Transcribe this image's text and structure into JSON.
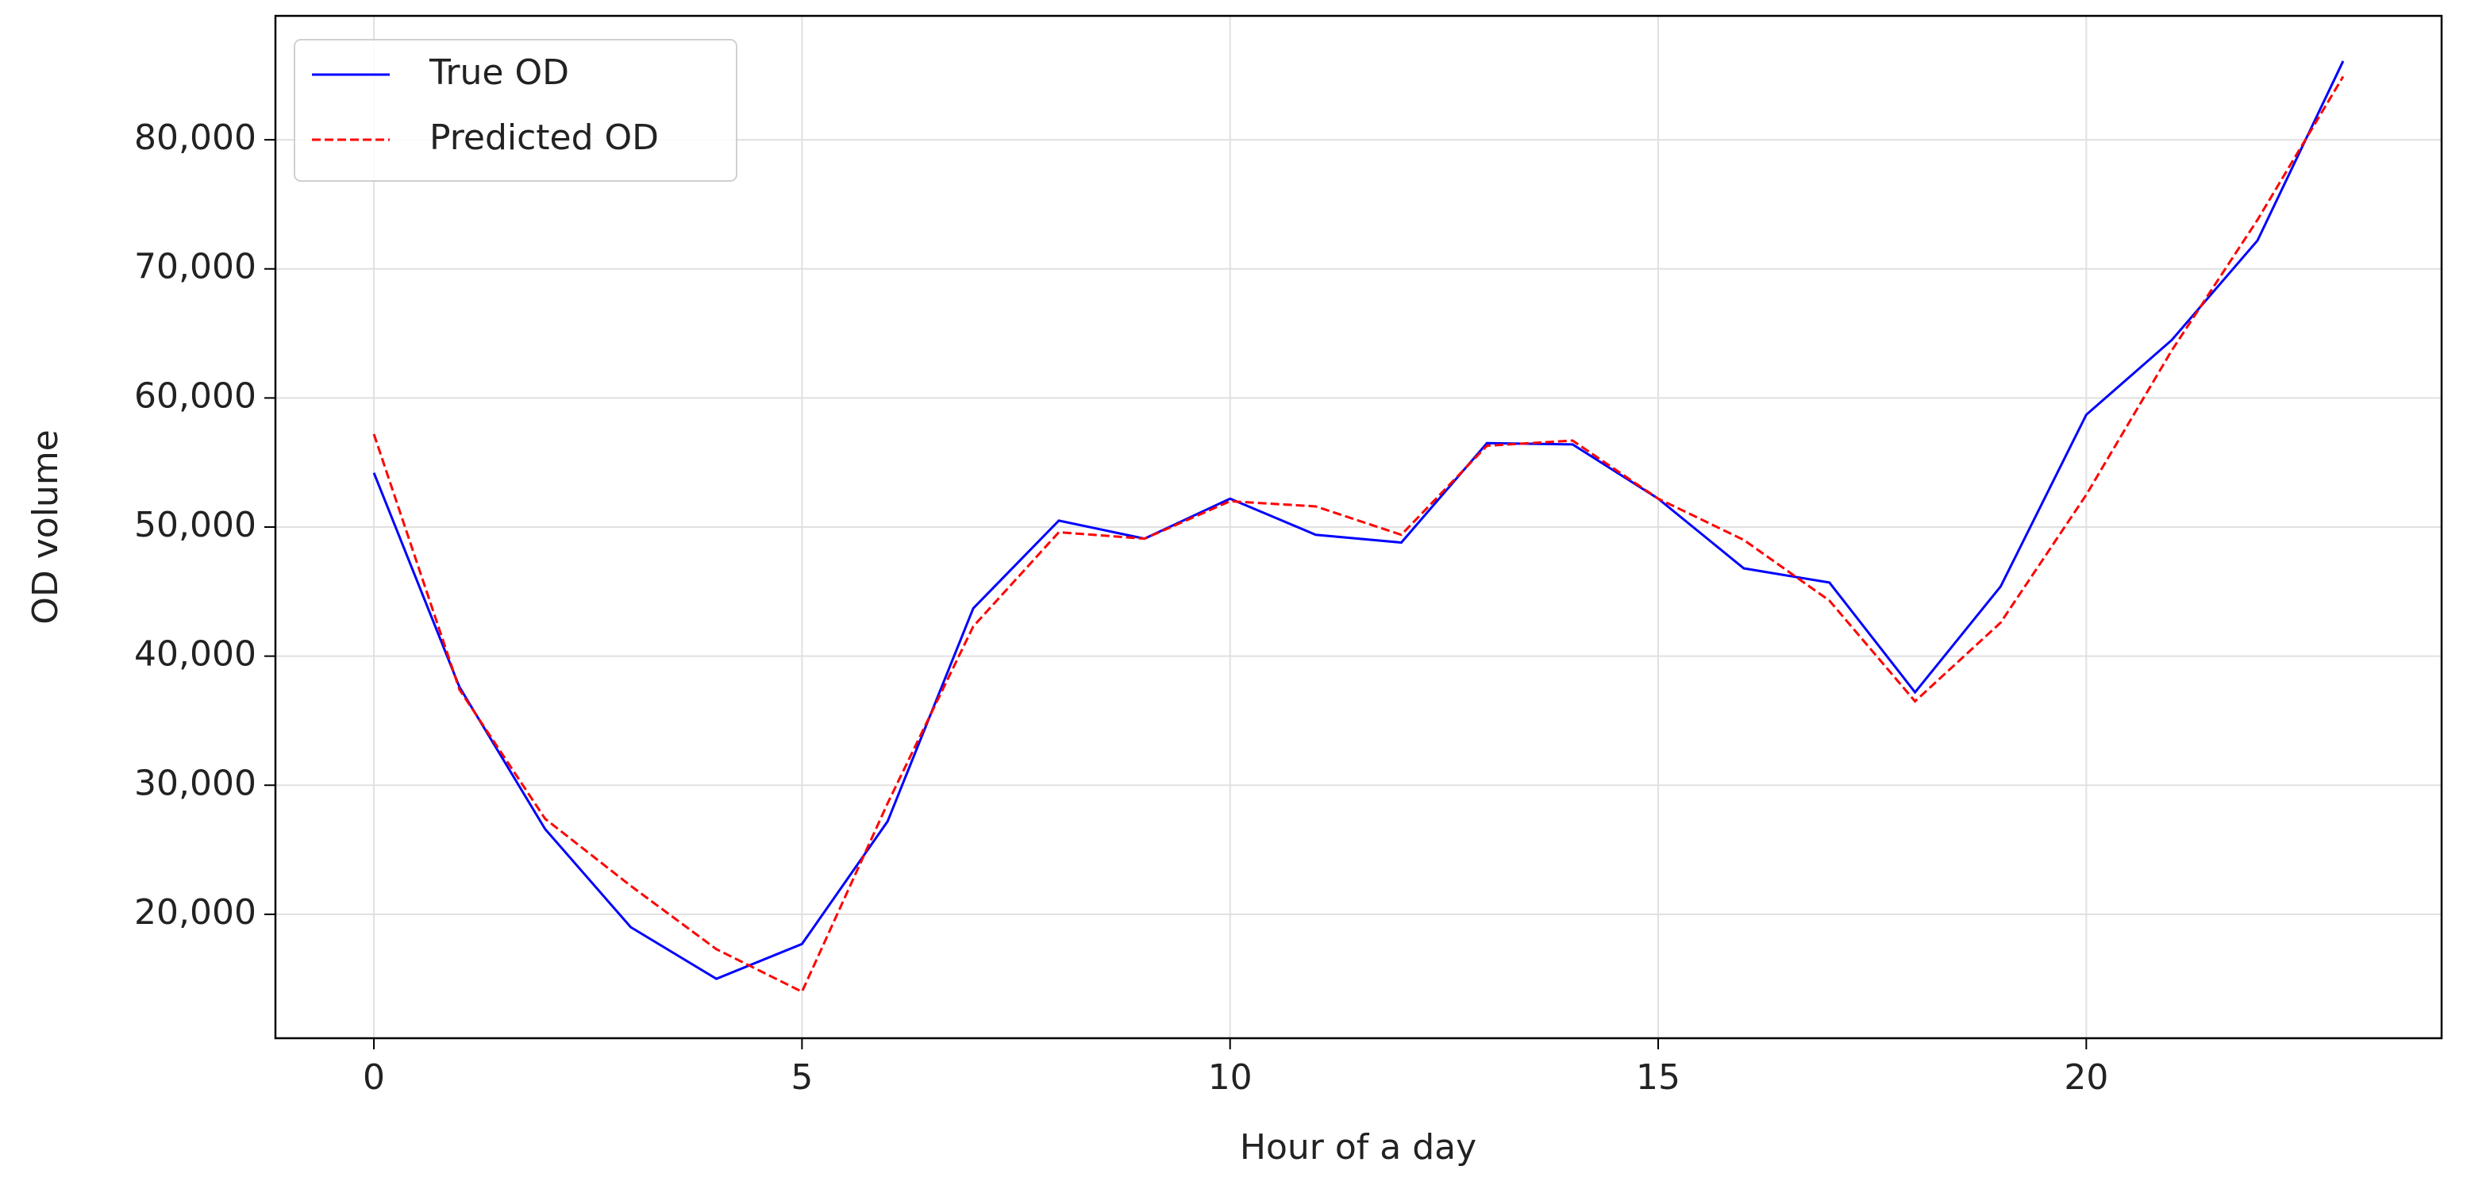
{
  "chart_data": {
    "type": "line",
    "x_label": "Hour of a day",
    "y_label": "OD volume",
    "x": [
      0,
      1,
      2,
      3,
      4,
      5,
      6,
      7,
      8,
      9,
      10,
      11,
      12,
      13,
      14,
      15,
      16,
      17,
      18,
      19,
      20,
      21,
      22,
      23
    ],
    "series": [
      {
        "name": "True OD",
        "color": "#0000ff",
        "dashed": false,
        "values": [
          54200,
          37600,
          26600,
          19000,
          15000,
          17700,
          27200,
          43700,
          50500,
          49100,
          52200,
          49400,
          48800,
          56500,
          56400,
          52200,
          46800,
          45700,
          37200,
          45400,
          58700,
          64500,
          72200,
          86100
        ]
      },
      {
        "name": "Predicted OD",
        "color": "#ff0000",
        "dashed": true,
        "values": [
          57200,
          37400,
          27400,
          22200,
          17300,
          14000,
          28600,
          42300,
          49600,
          49100,
          52000,
          51600,
          49400,
          56300,
          56700,
          52200,
          49000,
          44300,
          36500,
          42600,
          52500,
          63700,
          73800,
          84900
        ]
      }
    ],
    "xlim": [
      -1.15,
      24.15
    ],
    "ylim": [
      10400,
      89600
    ],
    "xticks": [
      0,
      5,
      10,
      15,
      20
    ],
    "yticks": [
      {
        "value": 20000,
        "label": "20,000"
      },
      {
        "value": 30000,
        "label": "30,000"
      },
      {
        "value": 40000,
        "label": "40,000"
      },
      {
        "value": 50000,
        "label": "50,000"
      },
      {
        "value": 60000,
        "label": "60,000"
      },
      {
        "value": 70000,
        "label": "70,000"
      },
      {
        "value": 80000,
        "label": "80,000"
      }
    ],
    "grid": true,
    "legend": "upper left"
  }
}
